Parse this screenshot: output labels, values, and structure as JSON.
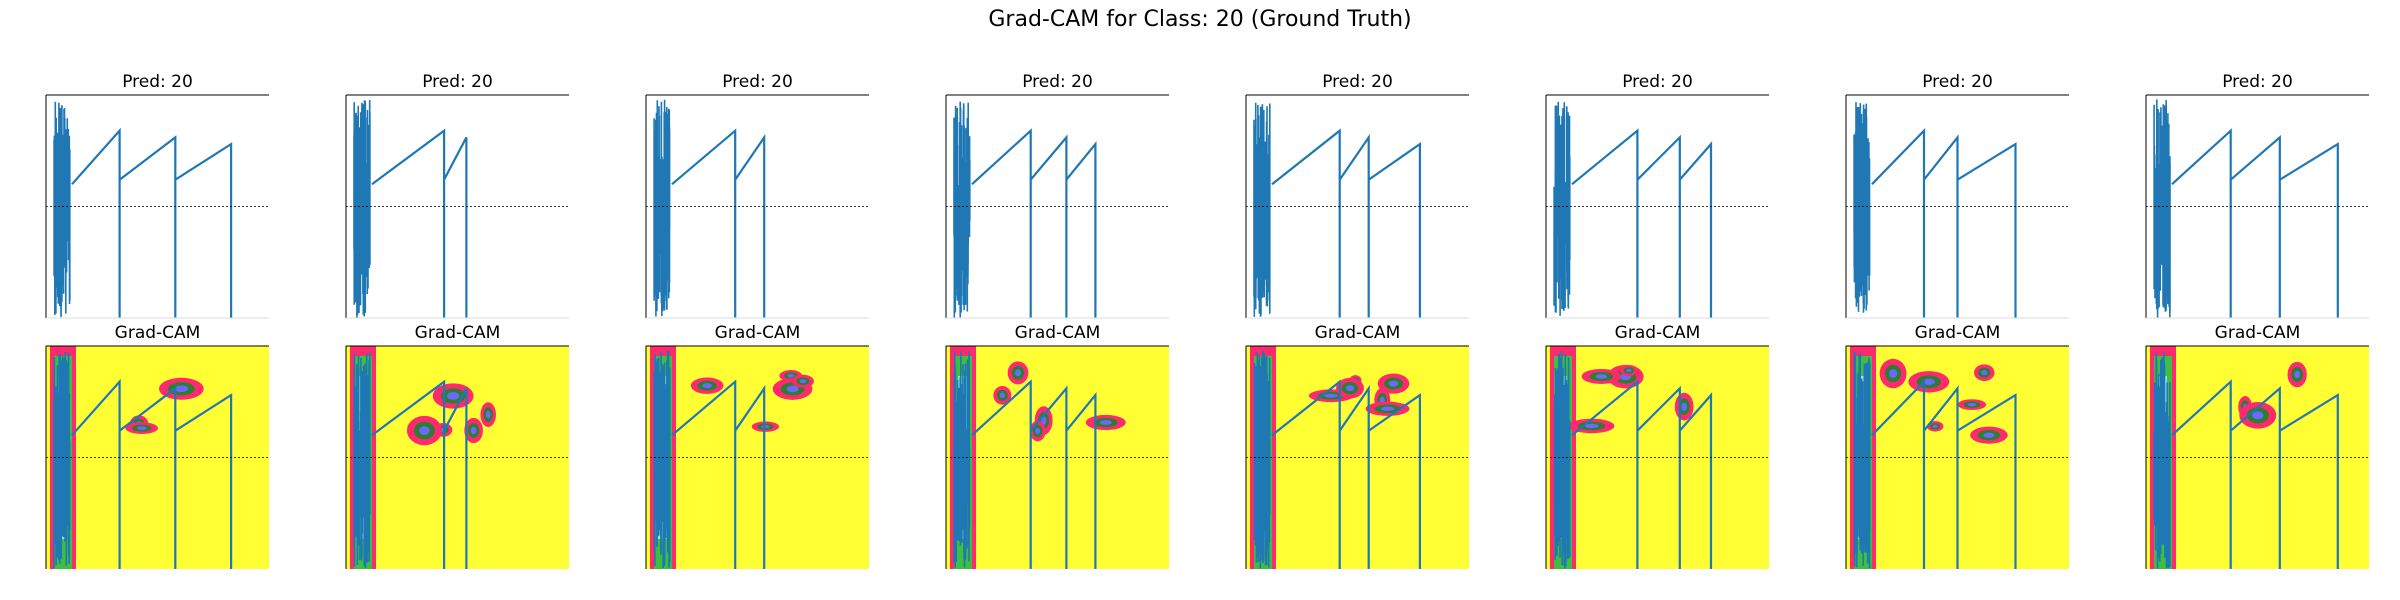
{
  "title": "Grad-CAM for Class: 20 (Ground Truth)",
  "panels": [
    {
      "pred_title": "Pred: 20",
      "cam_title": "Grad-CAM"
    },
    {
      "pred_title": "Pred: 20",
      "cam_title": "Grad-CAM"
    },
    {
      "pred_title": "Pred: 20",
      "cam_title": "Grad-CAM"
    },
    {
      "pred_title": "Pred: 20",
      "cam_title": "Grad-CAM"
    },
    {
      "pred_title": "Pred: 20",
      "cam_title": "Grad-CAM"
    },
    {
      "pred_title": "Pred: 20",
      "cam_title": "Grad-CAM"
    },
    {
      "pred_title": "Pred: 20",
      "cam_title": "Grad-CAM"
    },
    {
      "pred_title": "Pred: 20",
      "cam_title": "Grad-CAM"
    }
  ]
}
